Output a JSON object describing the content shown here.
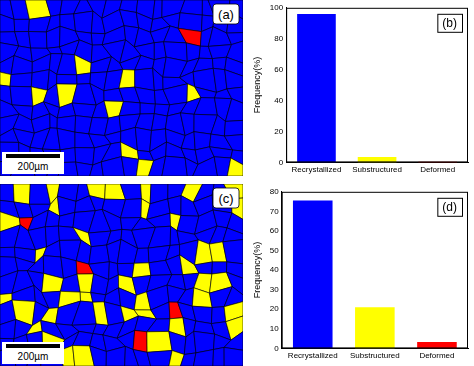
{
  "chart_data": [
    {
      "type": "bar",
      "annotation": "(b)",
      "y_label": "Frequency(%)",
      "categories": [
        "Recrystallized",
        "Substructured",
        "Deformed"
      ],
      "values": [
        96,
        3.5,
        0.5
      ],
      "colors": [
        "#0000ff",
        "#ffff00",
        "#ff0000"
      ],
      "ylim": [
        0,
        100
      ],
      "yticks": [
        0,
        20,
        40,
        60,
        80,
        100
      ],
      "grid": false
    },
    {
      "type": "bar",
      "annotation": "(d)",
      "y_label": "Frequency(%)",
      "categories": [
        "Recrystallized",
        "Substructured",
        "Deformed"
      ],
      "values": [
        75.5,
        21,
        3.3
      ],
      "colors": [
        "#0000ff",
        "#ffff00",
        "#ff0000"
      ],
      "ylim": [
        0,
        80
      ],
      "yticks": [
        0,
        10,
        20,
        30,
        40,
        50,
        60,
        70,
        80
      ],
      "grid": false
    }
  ],
  "maps": [
    {
      "label": "(a)",
      "scale_bar": "200µm"
    },
    {
      "label": "(c)",
      "scale_bar": "200µm"
    }
  ]
}
